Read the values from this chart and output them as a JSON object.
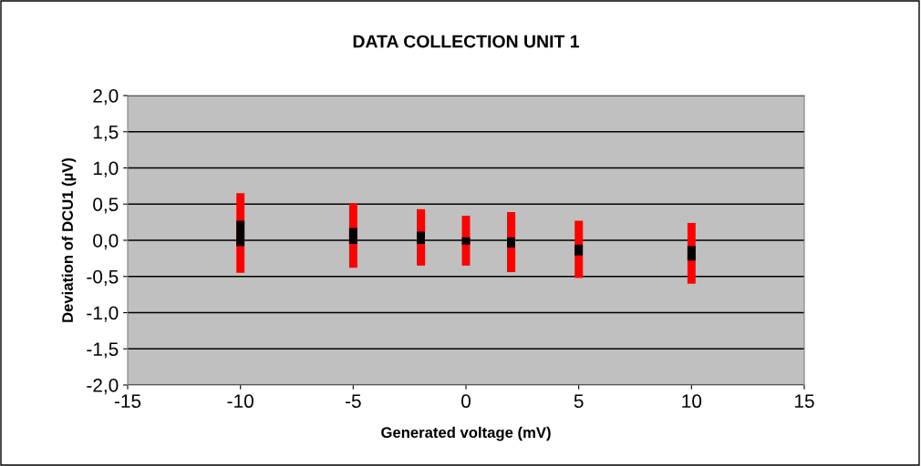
{
  "chart_data": {
    "type": "bar",
    "title": "DATA COLLECTION UNIT 1",
    "xlabel": "Generated voltage (mV)",
    "ylabel": "Deviation of DCU1 (µV)",
    "x": [
      -10,
      -5,
      -2,
      0,
      2,
      5,
      10
    ],
    "series": [
      {
        "color": "#ff0000",
        "base": [
          -0.45,
          -0.38,
          -0.35,
          -0.35,
          -0.44,
          -0.52,
          -0.6
        ],
        "values": [
          1.1,
          0.89,
          0.78,
          0.69,
          0.83,
          0.79,
          0.84
        ]
      },
      {
        "color": "#000000",
        "base": [
          -0.08,
          -0.05,
          -0.05,
          -0.06,
          -0.1,
          -0.21,
          -0.28
        ],
        "values": [
          0.35,
          0.22,
          0.17,
          0.1,
          0.14,
          0.15,
          0.2
        ]
      }
    ],
    "xlim": [
      -15,
      15
    ],
    "xticks": [
      -15,
      -10,
      -5,
      0,
      5,
      10,
      15
    ],
    "ylim": [
      -2,
      2
    ],
    "yticks": [
      {
        "value": -2,
        "label": "-2,0"
      },
      {
        "value": -1.5,
        "label": "-1,5"
      },
      {
        "value": -1,
        "label": "-1,0"
      },
      {
        "value": -0.5,
        "label": "-0,5"
      },
      {
        "value": 0,
        "label": "0,0"
      },
      {
        "value": 0.5,
        "label": "0,5"
      },
      {
        "value": 1,
        "label": "1,0"
      },
      {
        "value": 1.5,
        "label": "1,5"
      },
      {
        "value": 2,
        "label": "2,0"
      }
    ],
    "grid": "y"
  }
}
